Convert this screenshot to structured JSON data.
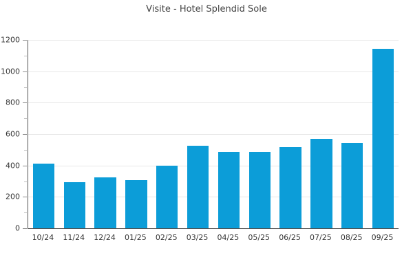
{
  "chart_data": {
    "type": "bar",
    "title": "Visite - Hotel Splendid Sole",
    "categories": [
      "10/24",
      "11/24",
      "12/24",
      "01/25",
      "02/25",
      "03/25",
      "04/25",
      "05/25",
      "06/25",
      "07/25",
      "08/25",
      "09/25"
    ],
    "values": [
      410,
      295,
      325,
      305,
      400,
      525,
      485,
      485,
      515,
      570,
      545,
      1145
    ],
    "xlabel": "",
    "ylabel": "",
    "ylim": [
      0,
      1200
    ],
    "yticks_major": [
      0,
      200,
      400,
      600,
      800,
      1000,
      1200
    ],
    "yticks_minor": [
      100,
      300,
      500,
      700,
      900,
      1100
    ],
    "grid": true,
    "legend_position": "none",
    "colors": {
      "bar": "#0c9dd8",
      "gridline": "#e7e7e7",
      "axis": "#4f4f4f",
      "tick_major": "#8a8a8a",
      "tick_minor": "#bdbdbd",
      "label_text": "#333333",
      "title_text": "#444444",
      "background": "#ffffff"
    }
  }
}
